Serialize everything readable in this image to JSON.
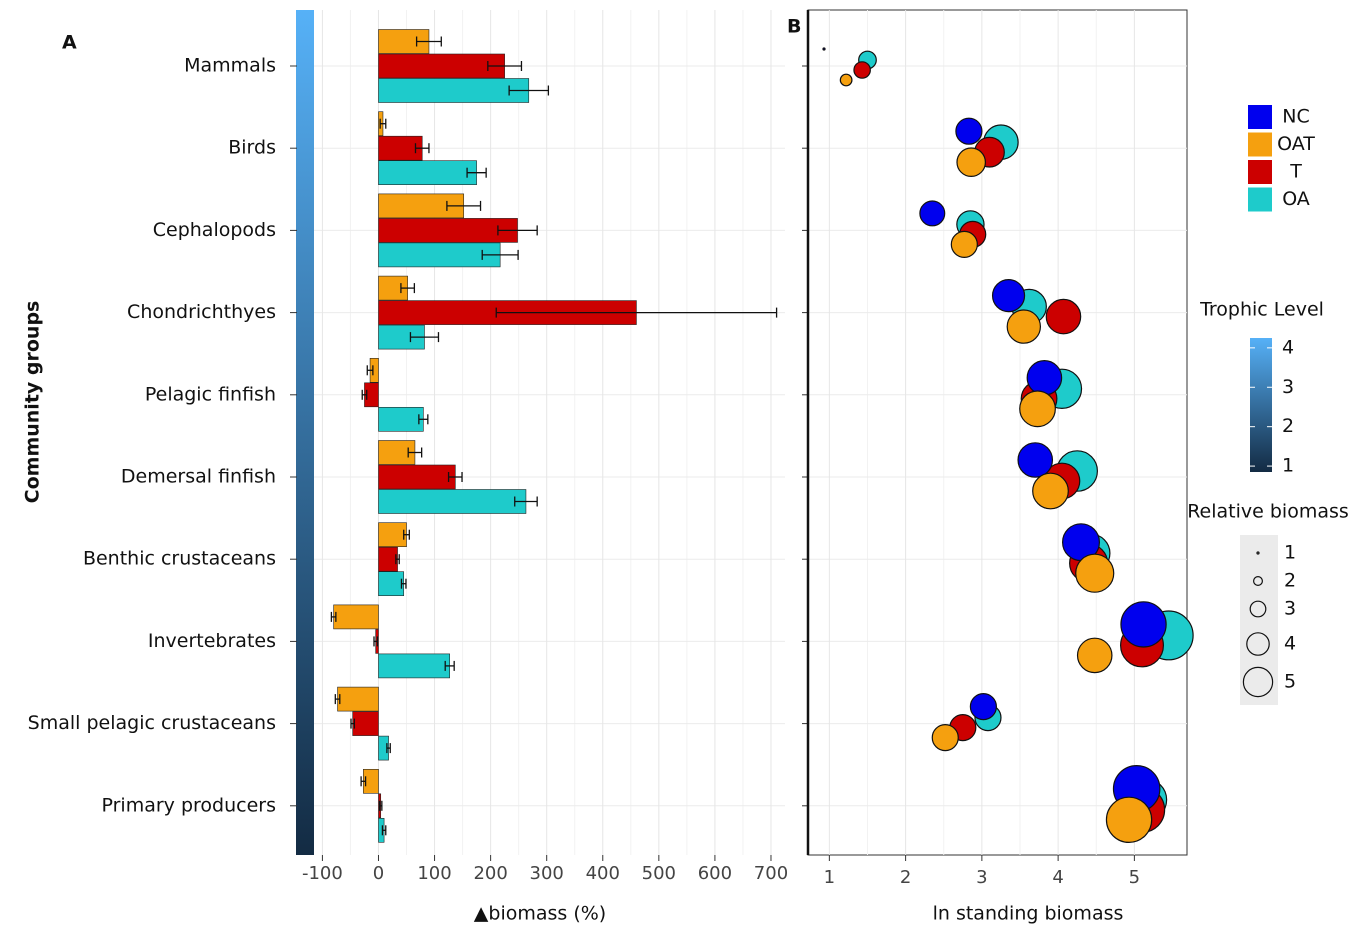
{
  "chart_data": [
    {
      "type": "bar",
      "orientation": "horizontal",
      "panel_label": "A",
      "y_label": "Community groups",
      "x_label": "▲biomass (%)",
      "categories": [
        "Mammals",
        "Birds",
        "Cephalopods",
        "Chondrichthyes",
        "Pelagic finfish",
        "Demersal finfish",
        "Benthic crustaceans",
        "Invertebrates",
        "Small pelagic crustaceans",
        "Primary producers"
      ],
      "series": [
        {
          "color": "#f5a00f",
          "values": [
            90,
            8,
            152,
            52,
            -15,
            65,
            50,
            -80,
            -73,
            -27
          ],
          "errors": [
            22,
            5,
            30,
            12,
            5,
            12,
            5,
            4,
            4,
            4
          ]
        },
        {
          "color": "#cc0000",
          "values": [
            225,
            78,
            248,
            460,
            -25,
            137,
            34,
            -5,
            -46,
            4
          ],
          "errors": [
            30,
            12,
            35,
            250,
            4,
            12,
            3,
            3,
            3,
            2
          ]
        },
        {
          "color": "#1ecbcb",
          "values": [
            268,
            175,
            217,
            82,
            80,
            263,
            45,
            127,
            18,
            10
          ],
          "errors": [
            35,
            17,
            32,
            25,
            8,
            20,
            4,
            8,
            3,
            3
          ]
        }
      ],
      "xlim": [
        -115,
        725
      ],
      "xticks": [
        -100,
        0,
        100,
        200,
        300,
        400,
        500,
        600,
        700
      ],
      "grid": true
    },
    {
      "type": "bubble",
      "panel_label": "B",
      "x_label": "ln standing biomass",
      "series": [
        {
          "name": "NC",
          "color": "#0000ee",
          "values": [
            0.93,
            2.83,
            2.35,
            3.35,
            3.82,
            3.7,
            4.3,
            5.12,
            3.02,
            5.03
          ],
          "sizes": [
            1,
            3.0,
            2.9,
            3.5,
            3.7,
            3.7,
            3.9,
            4.6,
            3.0,
            4.7
          ]
        },
        {
          "name": "OAT",
          "color": "#f5a00f",
          "values": [
            1.22,
            2.86,
            2.77,
            3.55,
            3.73,
            3.9,
            4.48,
            4.48,
            2.52,
            4.93
          ],
          "sizes": [
            1.8,
            3.2,
            3.0,
            3.6,
            3.8,
            3.8,
            4.0,
            3.7,
            3.0,
            4.6
          ]
        },
        {
          "name": "T",
          "color": "#cc0000",
          "values": [
            1.43,
            3.1,
            2.88,
            4.07,
            3.75,
            4.05,
            4.4,
            5.1,
            2.75,
            5.1
          ],
          "sizes": [
            2.2,
            3.3,
            3.0,
            3.7,
            3.8,
            3.8,
            4.0,
            4.4,
            3.0,
            4.6
          ]
        },
        {
          "name": "OA",
          "color": "#1ecbcb",
          "values": [
            1.5,
            3.25,
            2.85,
            3.62,
            4.05,
            4.25,
            4.43,
            5.45,
            3.08,
            5.15
          ],
          "sizes": [
            2.3,
            3.7,
            3.1,
            3.7,
            4.1,
            4.2,
            4.0,
            4.9,
            3.0,
            4.3
          ]
        }
      ],
      "xlim": [
        0.72,
        5.69
      ],
      "xticks": [
        1,
        2,
        3,
        4,
        5
      ],
      "grid": true,
      "colorbar": {
        "title": "Trophic Level",
        "lim": [
          0.85,
          4.25
        ],
        "ticks": [
          1,
          2,
          3,
          4
        ],
        "colors": [
          "#132b43",
          "#56b1f7"
        ]
      },
      "size_legend": {
        "title": "Relative biomass",
        "values": [
          1,
          2,
          3,
          4,
          5
        ]
      }
    }
  ]
}
